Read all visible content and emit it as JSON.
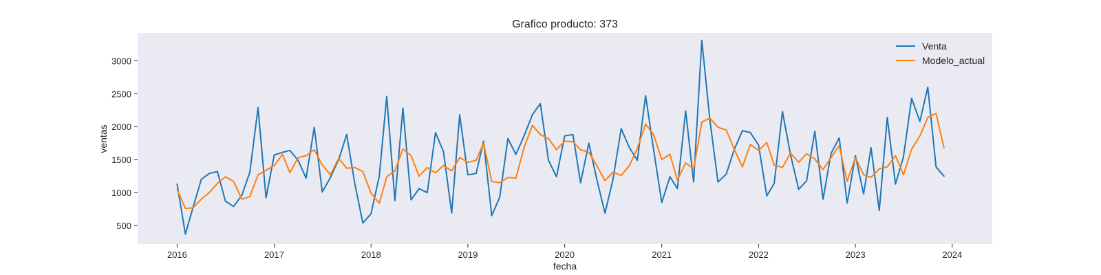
{
  "chart_data": {
    "type": "line",
    "title": "Grafico producto: 373",
    "xlabel": "fecha",
    "ylabel": "ventas",
    "grid": false,
    "legend_position": "top-right",
    "xlim": [
      "2015-08-05",
      "2024-05-31"
    ],
    "ylim": [
      220,
      3420
    ],
    "xticks": [
      {
        "date": "2016-01-01",
        "label": "2016"
      },
      {
        "date": "2017-01-01",
        "label": "2017"
      },
      {
        "date": "2018-01-01",
        "label": "2018"
      },
      {
        "date": "2019-01-01",
        "label": "2019"
      },
      {
        "date": "2020-01-01",
        "label": "2020"
      },
      {
        "date": "2021-01-01",
        "label": "2021"
      },
      {
        "date": "2022-01-01",
        "label": "2022"
      },
      {
        "date": "2023-01-01",
        "label": "2023"
      },
      {
        "date": "2024-01-01",
        "label": "2024"
      }
    ],
    "yticks": [
      500,
      1000,
      1500,
      2000,
      2500,
      3000
    ],
    "x": [
      "2016-01-01",
      "2016-02-01",
      "2016-03-01",
      "2016-04-01",
      "2016-05-01",
      "2016-06-01",
      "2016-07-01",
      "2016-08-01",
      "2016-09-01",
      "2016-10-01",
      "2016-11-01",
      "2016-12-01",
      "2017-01-01",
      "2017-02-01",
      "2017-03-01",
      "2017-04-01",
      "2017-05-01",
      "2017-06-01",
      "2017-07-01",
      "2017-08-01",
      "2017-09-01",
      "2017-10-01",
      "2017-11-01",
      "2017-12-01",
      "2018-01-01",
      "2018-02-01",
      "2018-03-01",
      "2018-04-01",
      "2018-05-01",
      "2018-06-01",
      "2018-07-01",
      "2018-08-01",
      "2018-09-01",
      "2018-10-01",
      "2018-11-01",
      "2018-12-01",
      "2019-01-01",
      "2019-02-01",
      "2019-03-01",
      "2019-04-01",
      "2019-05-01",
      "2019-06-01",
      "2019-07-01",
      "2019-08-01",
      "2019-09-01",
      "2019-10-01",
      "2019-11-01",
      "2019-12-01",
      "2020-01-01",
      "2020-02-01",
      "2020-03-01",
      "2020-04-01",
      "2020-05-01",
      "2020-06-01",
      "2020-07-01",
      "2020-08-01",
      "2020-09-01",
      "2020-10-01",
      "2020-11-01",
      "2020-12-01",
      "2021-01-01",
      "2021-02-01",
      "2021-03-01",
      "2021-04-01",
      "2021-05-01",
      "2021-06-01",
      "2021-07-01",
      "2021-08-01",
      "2021-09-01",
      "2021-10-01",
      "2021-11-01",
      "2021-12-01",
      "2022-01-01",
      "2022-02-01",
      "2022-03-01",
      "2022-04-01",
      "2022-05-01",
      "2022-06-01",
      "2022-07-01",
      "2022-08-01",
      "2022-09-01",
      "2022-10-01",
      "2022-11-01",
      "2022-12-01",
      "2023-01-01",
      "2023-02-01",
      "2023-03-01",
      "2023-04-01",
      "2023-05-01",
      "2023-06-01",
      "2023-07-01",
      "2023-08-01",
      "2023-09-01",
      "2023-10-01",
      "2023-11-01",
      "2023-12-01"
    ],
    "series": [
      {
        "name": "Venta",
        "color": "#1f77b4",
        "values": [
          1130,
          370,
          780,
          1200,
          1290,
          1320,
          870,
          790,
          960,
          1310,
          2290,
          920,
          1570,
          1610,
          1640,
          1490,
          1220,
          1990,
          1010,
          1230,
          1500,
          1880,
          1130,
          540,
          680,
          1250,
          2460,
          880,
          2280,
          890,
          1060,
          1000,
          1910,
          1620,
          690,
          2180,
          1270,
          1290,
          1780,
          650,
          930,
          1820,
          1580,
          1860,
          2180,
          2350,
          1490,
          1240,
          1860,
          1880,
          1150,
          1750,
          1200,
          690,
          1200,
          1970,
          1680,
          1490,
          2470,
          1660,
          850,
          1240,
          1060,
          2240,
          1160,
          3310,
          2110,
          1160,
          1280,
          1650,
          1940,
          1910,
          1720,
          950,
          1140,
          2230,
          1580,
          1050,
          1180,
          1930,
          900,
          1590,
          1830,
          840,
          1560,
          980,
          1680,
          730,
          2140,
          1130,
          1540,
          2430,
          2080,
          2600,
          1390,
          1250
        ]
      },
      {
        "name": "Modelo_actual",
        "color": "#ff7f0e",
        "values": [
          1050,
          760,
          770,
          900,
          1000,
          1140,
          1240,
          1170,
          900,
          940,
          1270,
          1340,
          1410,
          1580,
          1300,
          1530,
          1560,
          1650,
          1420,
          1270,
          1520,
          1370,
          1380,
          1320,
          990,
          840,
          1240,
          1330,
          1660,
          1560,
          1250,
          1380,
          1300,
          1410,
          1330,
          1530,
          1460,
          1490,
          1750,
          1170,
          1150,
          1230,
          1220,
          1680,
          2020,
          1880,
          1820,
          1650,
          1780,
          1770,
          1650,
          1610,
          1410,
          1180,
          1310,
          1260,
          1410,
          1670,
          2040,
          1880,
          1500,
          1580,
          1190,
          1450,
          1360,
          2070,
          2130,
          1990,
          1950,
          1660,
          1390,
          1730,
          1640,
          1760,
          1420,
          1380,
          1600,
          1460,
          1590,
          1510,
          1350,
          1530,
          1710,
          1170,
          1530,
          1270,
          1230,
          1360,
          1390,
          1560,
          1270,
          1660,
          1860,
          2140,
          2200,
          1680
        ]
      }
    ]
  }
}
